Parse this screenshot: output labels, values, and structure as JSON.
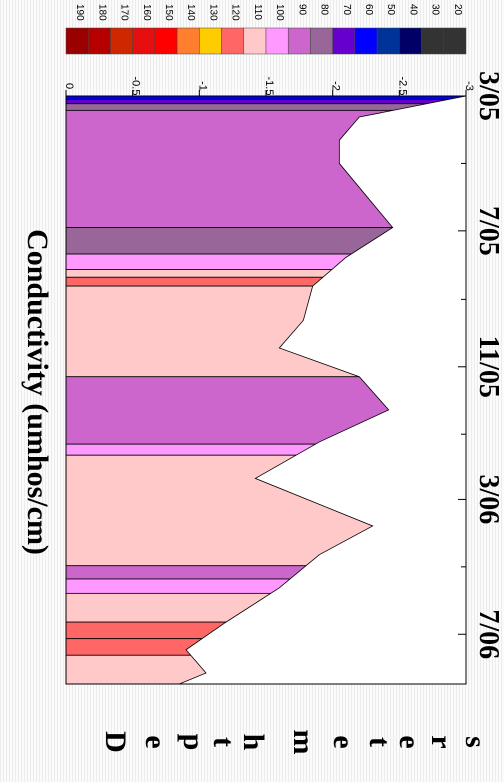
{
  "chart_data": {
    "type": "area",
    "title": "Conductivity (umhos/cm)",
    "ylabel": "Depth meters",
    "x_ticks": [
      "3/05",
      "7/05",
      "11/05",
      "3/06",
      "7/06"
    ],
    "y_ticks": [
      "0",
      "-0.5",
      "-1",
      "-1.5",
      "-2",
      "-2.5",
      "-3"
    ],
    "ylim": [
      -3,
      0
    ],
    "legend": {
      "placement": "right",
      "values": [
        "190",
        "180",
        "170",
        "160",
        "150",
        "140",
        "130",
        "120",
        "110",
        "100",
        "90",
        "80",
        "70",
        "60",
        "50",
        "40",
        "30",
        "20"
      ],
      "colors": [
        "#9b0000",
        "#b60000",
        "#cf2800",
        "#e60e0e",
        "#ff0000",
        "#ff7f2f",
        "#ffcc00",
        "#ff6666",
        "#ffc9c9",
        "#ff99ff",
        "#cc66cc",
        "#996699",
        "#6600cc",
        "#0000ff",
        "#003399",
        "#000066",
        "#333333",
        "#333333"
      ]
    },
    "max_depth_profile": [
      {
        "date": "2005-03-01",
        "depth": -3.0
      },
      {
        "date": "2005-03-20",
        "depth": -2.2
      },
      {
        "date": "2005-04-10",
        "depth": -2.05
      },
      {
        "date": "2005-05-01",
        "depth": -2.05
      },
      {
        "date": "2005-06-28",
        "depth": -2.45
      },
      {
        "date": "2005-07-25",
        "depth": -2.1
      },
      {
        "date": "2005-08-20",
        "depth": -1.85
      },
      {
        "date": "2005-09-20",
        "depth": -1.78
      },
      {
        "date": "2005-10-15",
        "depth": -1.6
      },
      {
        "date": "2005-11-10",
        "depth": -2.2
      },
      {
        "date": "2005-12-10",
        "depth": -2.42
      },
      {
        "date": "2006-01-08",
        "depth": -1.9
      },
      {
        "date": "2006-02-10",
        "depth": -1.42
      },
      {
        "date": "2006-03-25",
        "depth": -2.3
      },
      {
        "date": "2006-04-20",
        "depth": -1.9
      },
      {
        "date": "2006-05-20",
        "depth": -1.6
      },
      {
        "date": "2006-06-20",
        "depth": -1.2
      },
      {
        "date": "2006-07-15",
        "depth": -0.9
      },
      {
        "date": "2006-08-05",
        "depth": -1.05
      },
      {
        "date": "2006-08-15",
        "depth": -0.85
      }
    ],
    "bands": [
      {
        "from": "2005-03-01",
        "to": "2005-03-04",
        "value": 60
      },
      {
        "from": "2005-03-04",
        "to": "2005-03-08",
        "value": 70
      },
      {
        "from": "2005-03-08",
        "to": "2005-03-14",
        "value": 80
      },
      {
        "from": "2005-03-14",
        "to": "2005-06-28",
        "value": 90
      },
      {
        "from": "2005-06-28",
        "to": "2005-07-22",
        "value": 80
      },
      {
        "from": "2005-07-22",
        "to": "2005-08-05",
        "value": 100
      },
      {
        "from": "2005-08-05",
        "to": "2005-08-12",
        "value": 110
      },
      {
        "from": "2005-08-12",
        "to": "2005-08-20",
        "value": 120
      },
      {
        "from": "2005-08-20",
        "to": "2005-11-10",
        "value": 110
      },
      {
        "from": "2005-11-10",
        "to": "2006-01-10",
        "value": 90
      },
      {
        "from": "2006-01-10",
        "to": "2006-01-20",
        "value": 100
      },
      {
        "from": "2006-01-20",
        "to": "2006-04-30",
        "value": 110
      },
      {
        "from": "2006-04-30",
        "to": "2006-05-12",
        "value": 90
      },
      {
        "from": "2006-05-12",
        "to": "2006-05-25",
        "value": 100
      },
      {
        "from": "2006-05-25",
        "to": "2006-06-20",
        "value": 110
      },
      {
        "from": "2006-06-20",
        "to": "2006-07-05",
        "value": 120
      },
      {
        "from": "2006-07-05",
        "to": "2006-07-20",
        "value": 120
      },
      {
        "from": "2006-07-20",
        "to": "2006-08-15",
        "value": 110
      }
    ]
  }
}
